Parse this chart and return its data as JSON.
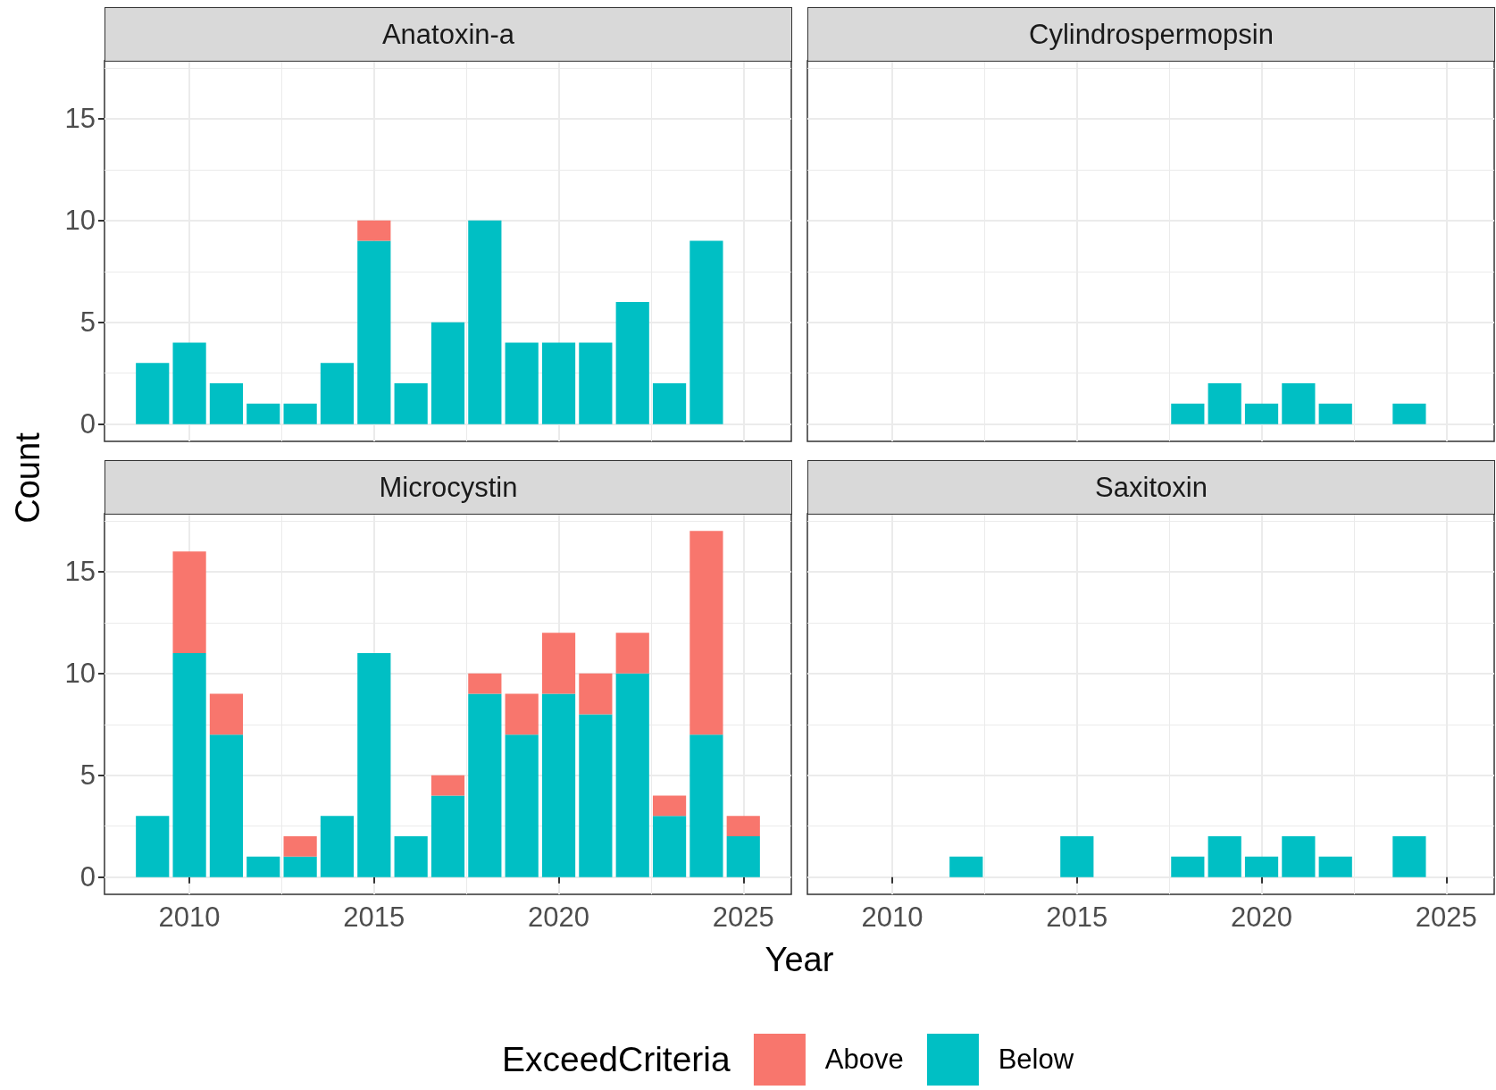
{
  "chart_data": [
    {
      "type": "bar",
      "title": "Anatoxin-a",
      "ylabel": "Count",
      "legend_title": "ExceedCriteria",
      "legend": "bottom",
      "stacked": true,
      "x": [
        2009,
        2010,
        2011,
        2012,
        2013,
        2014,
        2015,
        2016,
        2017,
        2018,
        2019,
        2020,
        2021,
        2022,
        2023,
        2024
      ],
      "series": [
        {
          "name": "Below",
          "color": "#00bfc4",
          "values": [
            3,
            4,
            2,
            1,
            1,
            3,
            9,
            2,
            5,
            10,
            4,
            4,
            4,
            6,
            2,
            9
          ]
        },
        {
          "name": "Above",
          "color": "#f8766d",
          "values": [
            null,
            null,
            null,
            null,
            null,
            null,
            1,
            null,
            null,
            null,
            null,
            null,
            null,
            null,
            null,
            null
          ]
        }
      ],
      "xlim": [
        2007.7,
        2026.3
      ],
      "xticks": [
        2010,
        2015,
        2020,
        2025
      ],
      "ylim": [
        -0.85,
        17.85
      ],
      "yticks": [
        0,
        5,
        10,
        15
      ],
      "grid": true,
      "tick_labels": "y"
    },
    {
      "type": "bar",
      "title": "Cylindrospermopsin",
      "x": [
        2018,
        2019,
        2020,
        2021,
        2022,
        2024
      ],
      "series": [
        {
          "color": "#00bfc4",
          "values": [
            1,
            2,
            1,
            2,
            1,
            1
          ]
        }
      ],
      "xlim": [
        2007.7,
        2026.3
      ],
      "xticks": [
        2010,
        2015,
        2020,
        2025
      ],
      "ylim": [
        -0.85,
        17.85
      ],
      "yticks": [
        0,
        5,
        10,
        15
      ],
      "grid": true,
      "tick_labels": false
    },
    {
      "type": "bar",
      "title": "Microcystin",
      "xlabel": "Year",
      "stacked": true,
      "x": [
        2009,
        2010,
        2011,
        2012,
        2013,
        2014,
        2015,
        2016,
        2017,
        2018,
        2019,
        2020,
        2021,
        2022,
        2023,
        2024,
        2025
      ],
      "series": [
        {
          "color": "#00bfc4",
          "values": [
            3,
            11,
            7,
            1,
            1,
            3,
            11,
            2,
            4,
            9,
            7,
            9,
            8,
            10,
            3,
            7,
            2
          ]
        },
        {
          "color": "#f8766d",
          "values": [
            null,
            5,
            2,
            null,
            1,
            null,
            null,
            null,
            1,
            1,
            2,
            3,
            2,
            2,
            1,
            10,
            1
          ]
        }
      ],
      "xlim": [
        2007.7,
        2026.3
      ],
      "xticks": [
        2010,
        2015,
        2020,
        2025
      ],
      "ylim": [
        -0.85,
        17.85
      ],
      "yticks": [
        0,
        5,
        10,
        15
      ],
      "grid": true
    },
    {
      "type": "bar",
      "title": "Saxitoxin",
      "x": [
        2012,
        2015,
        2018,
        2019,
        2020,
        2021,
        2022,
        2024
      ],
      "series": [
        {
          "color": "#00bfc4",
          "values": [
            1,
            2,
            1,
            2,
            1,
            2,
            1,
            2
          ]
        }
      ],
      "xlim": [
        2007.7,
        2026.3
      ],
      "xticks": [
        2010,
        2015,
        2020,
        2025
      ],
      "ylim": [
        -0.85,
        17.85
      ],
      "yticks": [
        0,
        5,
        10,
        15
      ],
      "grid": true,
      "tick_labels": "x"
    }
  ]
}
